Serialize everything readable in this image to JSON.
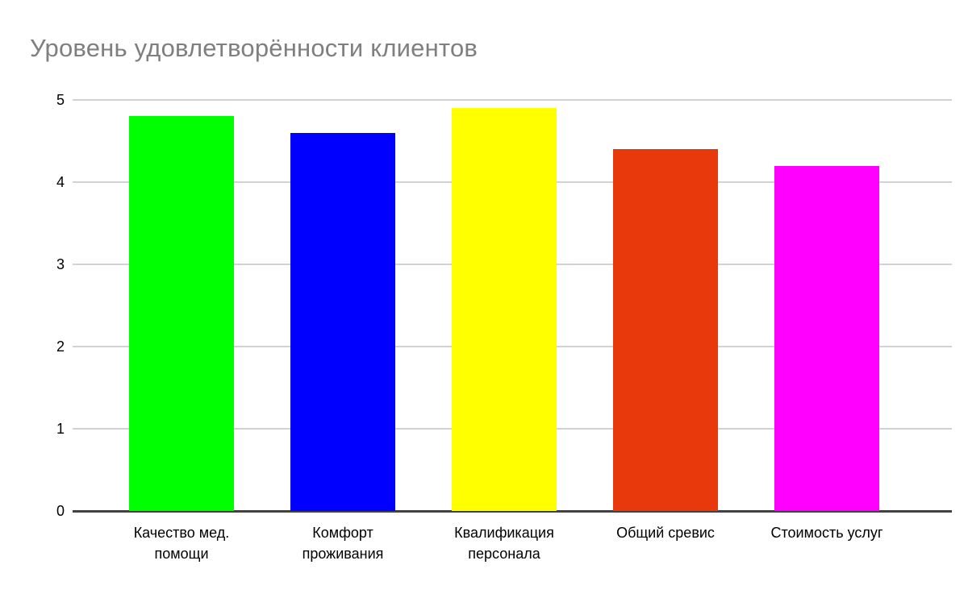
{
  "chart_data": {
    "type": "bar",
    "title": "Уровень удовлетворённости клиентов",
    "categories": [
      "Качество мед. помощи",
      "Комфорт проживания",
      "Квалификация персонала",
      "Общий сревис",
      "Стоимость услуг"
    ],
    "category_lines": [
      [
        "Качество мед.",
        "помощи"
      ],
      [
        "Комфорт",
        "проживания"
      ],
      [
        "Квалификация",
        "персонала"
      ],
      [
        "Общий сревис"
      ],
      [
        "Стоимость услуг"
      ]
    ],
    "values": [
      4.8,
      4.6,
      4.9,
      4.4,
      4.2
    ],
    "bar_colors": [
      "#00ff00",
      "#0000ff",
      "#ffff00",
      "#e8390c",
      "#ff00ff"
    ],
    "xlabel": "",
    "ylabel": "",
    "ylim": [
      0,
      5
    ],
    "yticks": [
      0,
      1,
      2,
      3,
      4,
      5
    ],
    "grid": true,
    "legend_position": "none",
    "title_color": "#7f7f7f",
    "grid_color": "#d2d2d2",
    "axis_line_color": "#424242",
    "tick_label_color": "#000000",
    "background": "#ffffff"
  }
}
